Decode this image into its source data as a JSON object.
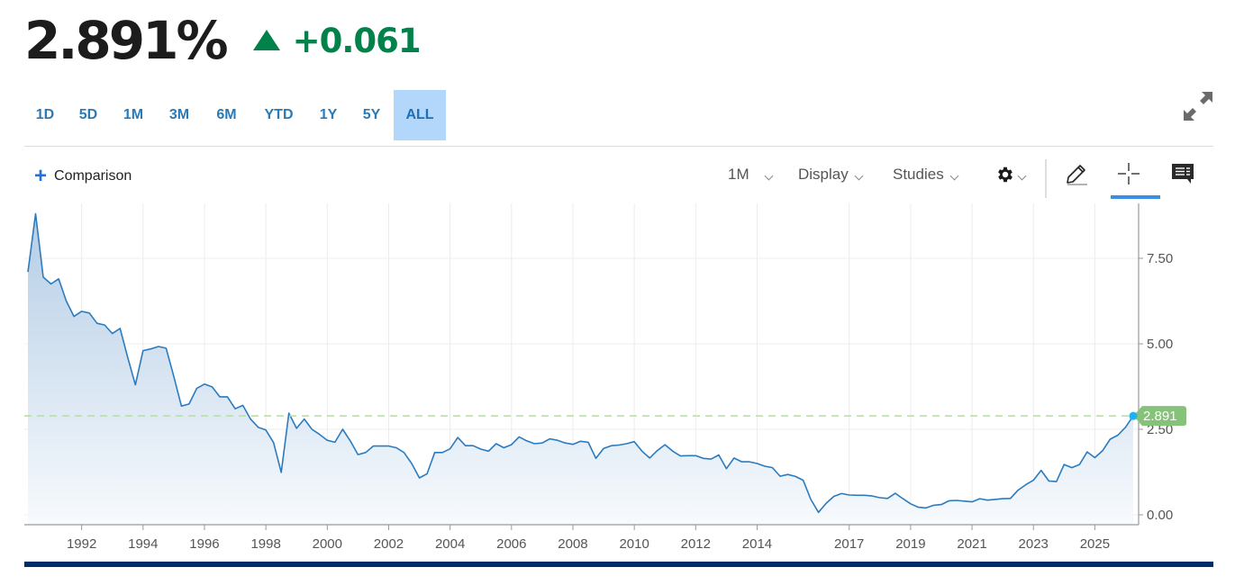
{
  "quote": {
    "price": "2.891%",
    "change": "+0.061",
    "direction": "up",
    "up_color": "#00824a"
  },
  "ranges": [
    {
      "label": "1D",
      "width": 46
    },
    {
      "label": "5D",
      "width": 50
    },
    {
      "label": "1M",
      "width": 50
    },
    {
      "label": "3M",
      "width": 52
    },
    {
      "label": "6M",
      "width": 53
    },
    {
      "label": "YTD",
      "width": 63
    },
    {
      "label": "1Y",
      "width": 47
    },
    {
      "label": "5Y",
      "width": 49
    },
    {
      "label": "ALL",
      "width": 58,
      "active": true
    }
  ],
  "toolbar": {
    "comparison_label": "Comparison",
    "interval_label": "1M",
    "display_label": "Display",
    "studies_label": "Studies",
    "settings_icon": "gear-icon",
    "draw_icon": "pencil-icon",
    "crosshair_icon": "crosshair-icon",
    "comments_icon": "comment-icon",
    "expand_icon": "expand-icon"
  },
  "colors": {
    "line": "#2b7bbf",
    "fill_top": "#b5cde6",
    "fill_bottom": "#f7fafd",
    "last_marker": "#1fb0f5",
    "last_label_bg": "#86c27a",
    "dashed_ref": "#b8dca8",
    "bottom_bar": "#002d6a",
    "active_range": "#b3d7fb",
    "accent": "#3a8ee6"
  },
  "chart_data": {
    "type": "area",
    "title": "",
    "xlabel": "",
    "ylabel": "",
    "ylim": [
      0,
      9.1
    ],
    "y_ticks": [
      "0.00",
      "2.50",
      "5.00",
      "7.50"
    ],
    "x_ticks": [
      "1992",
      "1994",
      "1996",
      "1998",
      "2000",
      "2002",
      "2004",
      "2006",
      "2008",
      "2010",
      "2012",
      "2014",
      "2017",
      "2019",
      "2021",
      "2023",
      "2025"
    ],
    "grid": true,
    "legend": "none",
    "last_value_label": "2.891",
    "last_value": 2.891,
    "reference_line": 2.891,
    "x_start": 1990.25,
    "x_step_years": 0.25,
    "values": [
      7.1,
      8.8,
      6.95,
      6.75,
      6.9,
      6.25,
      5.8,
      5.95,
      5.9,
      5.6,
      5.55,
      5.3,
      5.45,
      4.6,
      3.8,
      4.8,
      4.85,
      4.92,
      4.87,
      4.05,
      3.18,
      3.24,
      3.7,
      3.82,
      3.74,
      3.45,
      3.45,
      3.1,
      3.2,
      2.8,
      2.56,
      2.48,
      2.11,
      1.24,
      2.97,
      2.53,
      2.8,
      2.5,
      2.35,
      2.18,
      2.12,
      2.5,
      2.16,
      1.76,
      1.82,
      2.01,
      2.01,
      2.01,
      1.96,
      1.82,
      1.5,
      1.08,
      1.2,
      1.82,
      1.82,
      1.93,
      2.26,
      2.02,
      2.02,
      1.92,
      1.86,
      2.08,
      1.96,
      2.05,
      2.28,
      2.16,
      2.08,
      2.1,
      2.22,
      2.18,
      2.1,
      2.06,
      2.15,
      2.12,
      1.65,
      1.94,
      2.02,
      2.04,
      2.08,
      2.14,
      1.86,
      1.66,
      1.88,
      2.05,
      1.86,
      1.72,
      1.73,
      1.73,
      1.65,
      1.63,
      1.75,
      1.35,
      1.66,
      1.55,
      1.55,
      1.5,
      1.42,
      1.38,
      1.13,
      1.18,
      1.12,
      1.01,
      0.45,
      0.07,
      0.34,
      0.54,
      0.62,
      0.58,
      0.57,
      0.57,
      0.55,
      0.5,
      0.48,
      0.63,
      0.47,
      0.32,
      0.22,
      0.2,
      0.28,
      0.3,
      0.41,
      0.42,
      0.4,
      0.38,
      0.47,
      0.43,
      0.45,
      0.47,
      0.48,
      0.72,
      0.88,
      1.01,
      1.3,
      0.99,
      0.97,
      1.47,
      1.38,
      1.47,
      1.84,
      1.67,
      1.87,
      2.21,
      2.33,
      2.56,
      2.891
    ]
  }
}
